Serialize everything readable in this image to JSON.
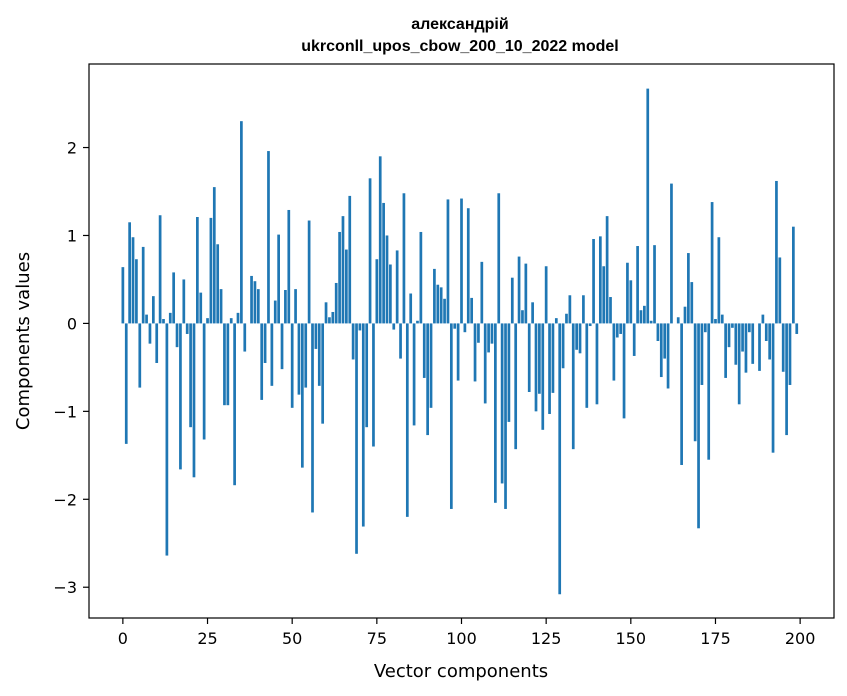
{
  "chart_data": {
    "type": "bar",
    "title_line1": "александрій",
    "title_line2": "ukrconll_upos_cbow_200_10_2022 model",
    "xlabel": "Vector components",
    "ylabel": "Components values",
    "xlim": [
      -10,
      210
    ],
    "ylim": [
      -3.35,
      2.95
    ],
    "xticks": [
      0,
      25,
      50,
      75,
      100,
      125,
      150,
      175,
      200
    ],
    "xtick_labels": [
      "0",
      "25",
      "50",
      "75",
      "100",
      "125",
      "150",
      "175",
      "200"
    ],
    "yticks": [
      -3,
      -2,
      -1,
      0,
      1,
      2
    ],
    "ytick_labels": [
      "−3",
      "−2",
      "−1",
      "0",
      "1",
      "2"
    ],
    "bar_color": "#1f77b4",
    "x": [
      0,
      1,
      2,
      3,
      4,
      5,
      6,
      7,
      8,
      9,
      10,
      11,
      12,
      13,
      14,
      15,
      16,
      17,
      18,
      19,
      20,
      21,
      22,
      23,
      24,
      25,
      26,
      27,
      28,
      29,
      30,
      31,
      32,
      33,
      34,
      35,
      36,
      37,
      38,
      39,
      40,
      41,
      42,
      43,
      44,
      45,
      46,
      47,
      48,
      49,
      50,
      51,
      52,
      53,
      54,
      55,
      56,
      57,
      58,
      59,
      60,
      61,
      62,
      63,
      64,
      65,
      66,
      67,
      68,
      69,
      70,
      71,
      72,
      73,
      74,
      75,
      76,
      77,
      78,
      79,
      80,
      81,
      82,
      83,
      84,
      85,
      86,
      87,
      88,
      89,
      90,
      91,
      92,
      93,
      94,
      95,
      96,
      97,
      98,
      99,
      100,
      101,
      102,
      103,
      104,
      105,
      106,
      107,
      108,
      109,
      110,
      111,
      112,
      113,
      114,
      115,
      116,
      117,
      118,
      119,
      120,
      121,
      122,
      123,
      124,
      125,
      126,
      127,
      128,
      129,
      130,
      131,
      132,
      133,
      134,
      135,
      136,
      137,
      138,
      139,
      140,
      141,
      142,
      143,
      144,
      145,
      146,
      147,
      148,
      149,
      150,
      151,
      152,
      153,
      154,
      155,
      156,
      157,
      158,
      159,
      160,
      161,
      162,
      163,
      164,
      165,
      166,
      167,
      168,
      169,
      170,
      171,
      172,
      173,
      174,
      175,
      176,
      177,
      178,
      179,
      180,
      181,
      182,
      183,
      184,
      185,
      186,
      187,
      188,
      189,
      190,
      191,
      192,
      193,
      194,
      195,
      196,
      197,
      198,
      199
    ],
    "values": [
      0.64,
      -1.37,
      1.15,
      0.98,
      0.73,
      -0.73,
      0.87,
      0.1,
      -0.23,
      0.31,
      -0.45,
      1.23,
      0.05,
      -2.64,
      0.12,
      0.58,
      -0.27,
      -1.66,
      0.5,
      -0.12,
      -1.18,
      -1.75,
      1.21,
      0.35,
      -1.32,
      0.06,
      1.2,
      1.55,
      0.9,
      0.39,
      -0.93,
      -0.93,
      0.06,
      -1.84,
      0.12,
      2.3,
      -0.32,
      0.0,
      0.54,
      0.48,
      0.39,
      -0.87,
      -0.45,
      1.96,
      -0.71,
      0.26,
      1.01,
      -0.52,
      0.38,
      1.29,
      -0.96,
      0.39,
      -0.81,
      -1.64,
      -0.73,
      1.17,
      -2.15,
      -0.29,
      -0.71,
      -1.14,
      0.24,
      0.07,
      0.13,
      0.46,
      1.04,
      1.22,
      0.84,
      1.45,
      -0.41,
      -2.62,
      -0.08,
      -2.31,
      -1.18,
      1.65,
      -1.4,
      0.73,
      1.9,
      1.37,
      1.0,
      0.67,
      -0.07,
      0.83,
      -0.4,
      1.48,
      -2.2,
      0.34,
      -1.16,
      0.03,
      1.04,
      -0.62,
      -1.27,
      -0.96,
      0.62,
      0.44,
      0.41,
      0.28,
      1.41,
      -2.11,
      -0.06,
      -0.65,
      1.42,
      -0.1,
      1.31,
      0.29,
      -0.66,
      -0.22,
      0.7,
      -0.91,
      -0.33,
      -0.23,
      -2.04,
      1.48,
      -1.82,
      -2.11,
      -1.12,
      0.52,
      -1.43,
      0.76,
      0.15,
      0.68,
      -0.78,
      0.24,
      -1.0,
      -0.8,
      -1.21,
      0.65,
      -1.03,
      -0.79,
      0.06,
      -3.08,
      -0.51,
      0.11,
      0.32,
      -1.43,
      -0.3,
      -0.34,
      0.32,
      -0.96,
      -0.03,
      0.96,
      -0.92,
      0.99,
      0.65,
      1.22,
      0.3,
      -0.65,
      -0.16,
      -0.12,
      -1.08,
      0.69,
      0.49,
      -0.37,
      0.88,
      0.15,
      0.2,
      2.67,
      0.03,
      0.89,
      -0.2,
      -0.61,
      -0.4,
      -0.74,
      1.59,
      0.0,
      0.07,
      -1.61,
      0.19,
      0.8,
      0.47,
      -1.34,
      -2.33,
      -0.7,
      -0.1,
      -1.55,
      1.38,
      0.05,
      0.98,
      0.1,
      -0.62,
      -0.27,
      -0.05,
      -0.47,
      -0.92,
      -0.32,
      -0.56,
      -0.1,
      -0.46,
      0.0,
      -0.54,
      0.1,
      -0.2,
      -0.41,
      -1.47,
      1.62,
      0.75,
      -0.55,
      -1.27,
      -0.7,
      1.1,
      -0.12
    ]
  }
}
